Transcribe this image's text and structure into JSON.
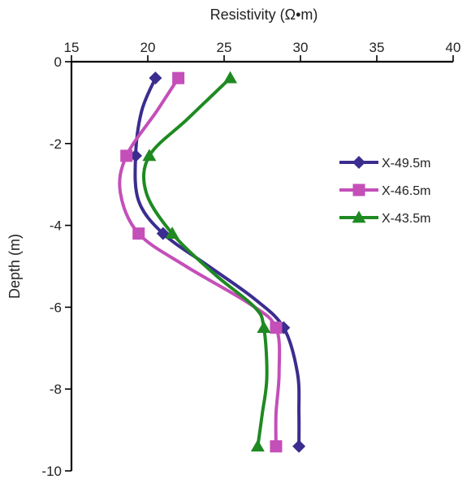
{
  "chart_data": {
    "type": "line",
    "xlabel": "Resistivity (Ω•m)",
    "ylabel": "Depth (m)",
    "xlim": [
      15,
      40
    ],
    "ylim": [
      0,
      -10
    ],
    "xticks": [
      "15",
      "20",
      "25",
      "30",
      "35",
      "40"
    ],
    "yticks": [
      "0",
      "-2",
      "-4",
      "-6",
      "-8",
      "-10"
    ],
    "x_axis_position": "top",
    "grid": false,
    "legend_position": "right",
    "series": [
      {
        "name": "X-49.5m",
        "color": "#3b2d8f",
        "marker": "diamond",
        "points": [
          [
            20.5,
            -0.4
          ],
          [
            19.2,
            -2.3
          ],
          [
            21.0,
            -4.2
          ],
          [
            28.9,
            -6.5
          ],
          [
            29.9,
            -9.4
          ]
        ],
        "curve": [
          [
            20.5,
            -0.4
          ],
          [
            19.6,
            -1.2
          ],
          [
            19.2,
            -2.3
          ],
          [
            19.4,
            -3.4
          ],
          [
            21.0,
            -4.2
          ],
          [
            24.0,
            -5.0
          ],
          [
            27.0,
            -5.8
          ],
          [
            28.9,
            -6.5
          ],
          [
            29.8,
            -7.6
          ],
          [
            29.9,
            -8.6
          ],
          [
            29.9,
            -9.4
          ]
        ]
      },
      {
        "name": "X-46.5m",
        "color": "#c44fb9",
        "marker": "square",
        "points": [
          [
            22.0,
            -0.4
          ],
          [
            18.6,
            -2.3
          ],
          [
            19.4,
            -4.2
          ],
          [
            28.4,
            -6.5
          ],
          [
            28.4,
            -9.4
          ]
        ],
        "curve": [
          [
            22.0,
            -0.4
          ],
          [
            20.6,
            -1.2
          ],
          [
            18.6,
            -2.3
          ],
          [
            18.2,
            -3.2
          ],
          [
            19.4,
            -4.2
          ],
          [
            22.5,
            -5.0
          ],
          [
            26.6,
            -5.9
          ],
          [
            28.4,
            -6.5
          ],
          [
            28.6,
            -7.6
          ],
          [
            28.4,
            -8.6
          ],
          [
            28.4,
            -9.4
          ]
        ]
      },
      {
        "name": "X-43.5m",
        "color": "#1f8a22",
        "marker": "triangle",
        "points": [
          [
            25.4,
            -0.4
          ],
          [
            20.1,
            -2.3
          ],
          [
            21.6,
            -4.2
          ],
          [
            27.6,
            -6.5
          ],
          [
            27.2,
            -9.4
          ]
        ],
        "curve": [
          [
            25.4,
            -0.4
          ],
          [
            22.6,
            -1.4
          ],
          [
            20.1,
            -2.3
          ],
          [
            19.9,
            -3.2
          ],
          [
            21.6,
            -4.2
          ],
          [
            24.4,
            -5.2
          ],
          [
            27.0,
            -6.0
          ],
          [
            27.6,
            -6.5
          ],
          [
            27.8,
            -7.7
          ],
          [
            27.5,
            -8.6
          ],
          [
            27.2,
            -9.4
          ]
        ]
      }
    ]
  }
}
